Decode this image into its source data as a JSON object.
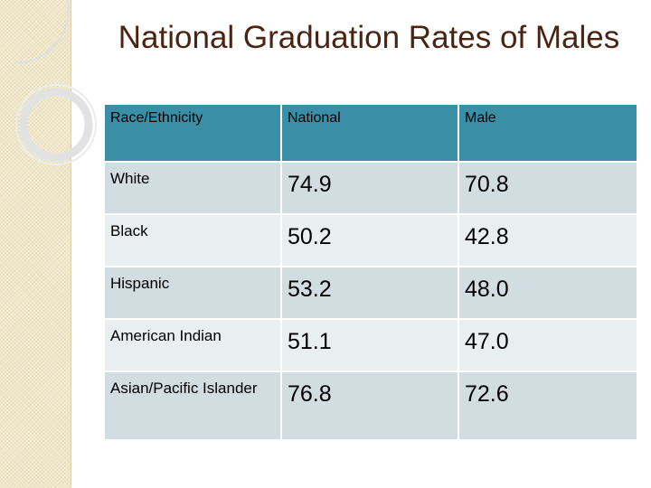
{
  "slide": {
    "title": "National Graduation Rates of Males"
  },
  "table": {
    "headers": [
      "Race/Ethnicity",
      "National",
      "Male"
    ],
    "rows": [
      {
        "label": "White",
        "national": "74.9",
        "male": "70.8"
      },
      {
        "label": "Black",
        "national": "50.2",
        "male": "42.8"
      },
      {
        "label": "Hispanic",
        "national": "53.2",
        "male": "48.0"
      },
      {
        "label": "American Indian",
        "national": "51.1",
        "male": "47.0"
      },
      {
        "label": "Asian/Pacific Islander",
        "national": "76.8",
        "male": "72.6"
      }
    ]
  },
  "colors": {
    "header_bg": "#3a8fa6",
    "row_odd_bg": "#d2dde2",
    "row_even_bg": "#e9eef0",
    "title_color": "#4a2412",
    "side_strip": "#efe7c8"
  }
}
